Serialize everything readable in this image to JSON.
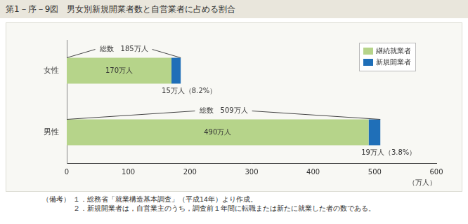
{
  "chart_data": {
    "type": "bar",
    "orientation": "horizontal",
    "stacked": true,
    "title": "第1－序－9図　男女別新規開業者数と自営業者に占める割合",
    "categories": [
      "女性",
      "男性"
    ],
    "series": [
      {
        "name": "継続就業者",
        "color": "#b6d48a",
        "values": [
          170,
          490
        ],
        "value_labels": [
          "170万人",
          "490万人"
        ]
      },
      {
        "name": "新規開業者",
        "color": "#1f6fb8",
        "values": [
          15,
          19
        ],
        "value_labels": [
          "15万人（8.2%）",
          "19万人（3.8%）"
        ]
      }
    ],
    "totals": [
      185,
      509
    ],
    "total_labels": [
      "総数　185万人",
      "総数　509万人"
    ],
    "xlim": [
      0,
      600
    ],
    "xticks": [
      0,
      100,
      200,
      300,
      400,
      500,
      600
    ],
    "xlabel": "（万人）",
    "grid": false,
    "legend": "top-right",
    "data_labels": true,
    "notes_title": "（備考）",
    "notes": [
      "１．総務省「就業構造基本調査」（平成14年）より作成。",
      "２．新規開業者は，自営業主のうち，調査前１年間に転職または新たに就業した者の数である。"
    ]
  }
}
